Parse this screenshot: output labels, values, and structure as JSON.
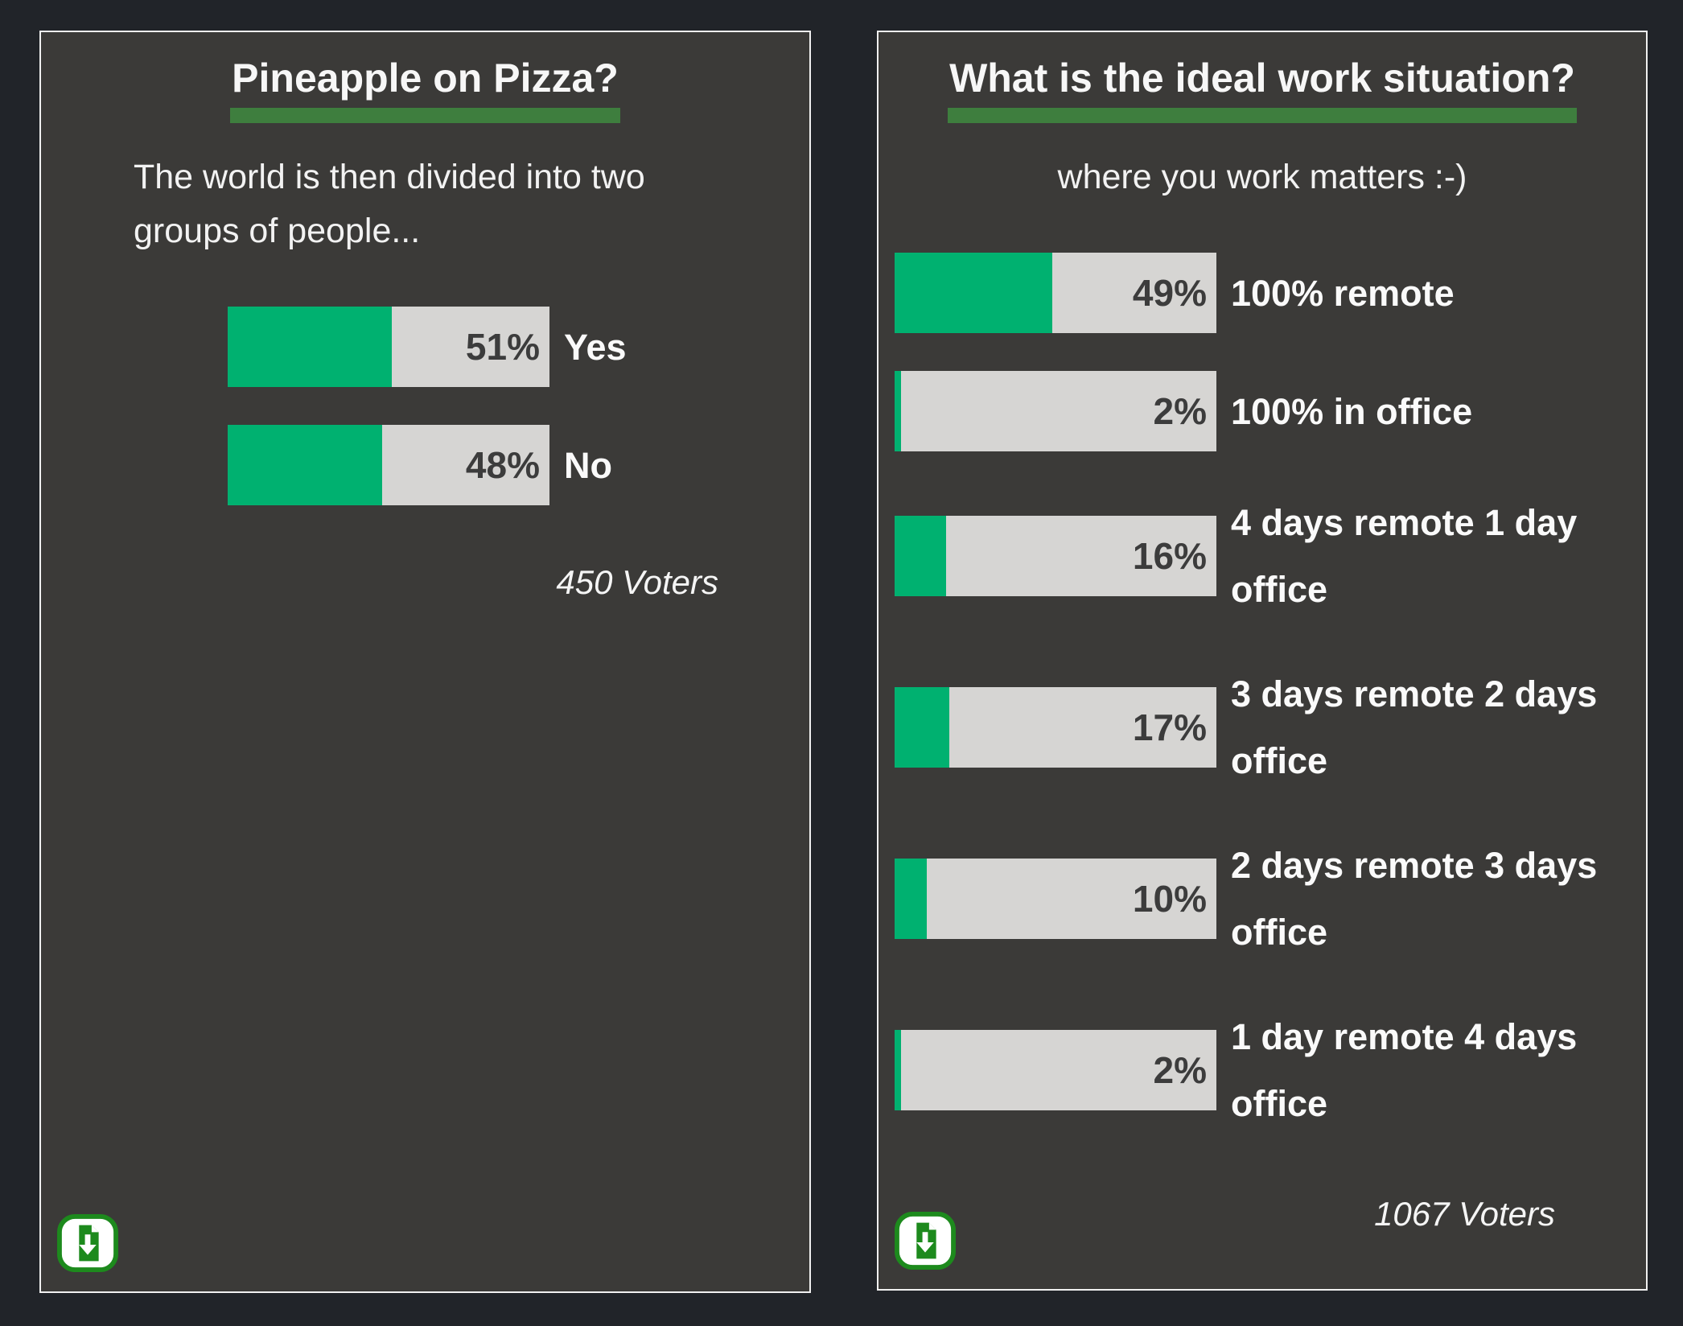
{
  "canvas": {
    "background": "#212429"
  },
  "theme": {
    "card_bg": "#3b3a38",
    "card_border": "#f0f0f0",
    "bar_fill_green": "#00b170",
    "bar_track_gray": "#d6d5d3",
    "title_underline_green": "#3e7e3e",
    "percent_text": "#3c3c3c",
    "icon_green": "#1d8a1d",
    "text_white": "#f7f7f7"
  },
  "cards": [
    {
      "title": "Pineapple on Pizza?",
      "subtitle": "The world is then divided into two groups of people...",
      "subtitle_lines": [
        "The world is then divided into two",
        "groups of people..."
      ],
      "voters": "450 Voters",
      "download_icon": "file-download-icon",
      "rows": [
        {
          "label": "Yes",
          "lines": [
            "Yes"
          ],
          "percent": "51%",
          "value": 51
        },
        {
          "label": "No",
          "lines": [
            "No"
          ],
          "percent": "48%",
          "value": 48
        }
      ]
    },
    {
      "title": "What is the ideal work situation?",
      "subtitle": "where you work matters :-)",
      "subtitle_lines": [
        "where you work matters :-)"
      ],
      "voters": "1067 Voters",
      "download_icon": "file-download-icon",
      "rows": [
        {
          "label": "100% remote",
          "lines": [
            "100% remote"
          ],
          "percent": "49%",
          "value": 49
        },
        {
          "label": "100% in office",
          "lines": [
            "100% in office"
          ],
          "percent": "2%",
          "value": 2
        },
        {
          "label": "4 days remote 1 day office",
          "lines": [
            "4 days remote 1 day",
            "office"
          ],
          "percent": "16%",
          "value": 16
        },
        {
          "label": "3 days remote 2 days office",
          "lines": [
            "3 days remote 2 days",
            "office"
          ],
          "percent": "17%",
          "value": 17
        },
        {
          "label": "2 days remote 3 days office",
          "lines": [
            "2 days remote 3 days",
            "office"
          ],
          "percent": "10%",
          "value": 10
        },
        {
          "label": "1 day remote 4 days office",
          "lines": [
            "1 day remote 4 days",
            "office"
          ],
          "percent": "2%",
          "value": 2
        }
      ]
    }
  ],
  "chart_data": [
    {
      "type": "bar",
      "orientation": "horizontal",
      "title": "Pineapple on Pizza?",
      "subtitle": "The world is then divided into two groups of people...",
      "categories": [
        "Yes",
        "No"
      ],
      "values": [
        51,
        48
      ],
      "unit": "percent",
      "xlim": [
        0,
        100
      ],
      "annotation": "450 Voters",
      "bar_color": "#00b170",
      "track_color": "#d6d5d3",
      "grid": false,
      "legend": false
    },
    {
      "type": "bar",
      "orientation": "horizontal",
      "title": "What is the ideal work situation?",
      "subtitle": "where you work matters :-)",
      "categories": [
        "100% remote",
        "100% in office",
        "4 days remote 1 day office",
        "3 days remote 2 days office",
        "2 days remote 3 days office",
        "1 day remote 4 days office"
      ],
      "values": [
        49,
        2,
        16,
        17,
        10,
        2
      ],
      "unit": "percent",
      "xlim": [
        0,
        100
      ],
      "annotation": "1067 Voters",
      "bar_color": "#00b170",
      "track_color": "#d6d5d3",
      "grid": false,
      "legend": false
    }
  ]
}
